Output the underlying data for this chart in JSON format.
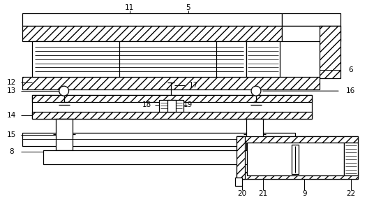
{
  "background_color": "#ffffff",
  "line_color": "#000000",
  "fig_w": 5.26,
  "fig_h": 2.89,
  "dpi": 100
}
